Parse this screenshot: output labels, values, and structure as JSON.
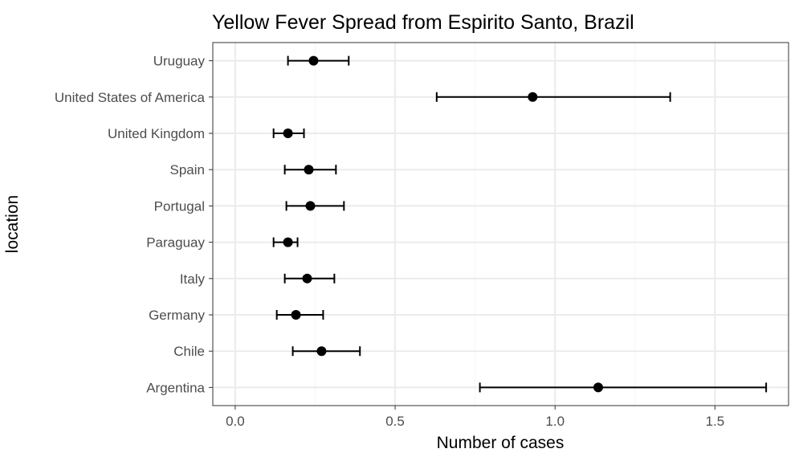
{
  "chart_data": {
    "type": "scatter",
    "title": "Yellow Fever Spread from Espirito Santo, Brazil",
    "xlabel": "Number of cases",
    "ylabel": "location",
    "xlim": [
      -0.07,
      1.73
    ],
    "x_ticks": [
      0.0,
      0.5,
      1.0,
      1.5
    ],
    "x_tick_labels": [
      "0.0",
      "0.5",
      "1.0",
      "1.5"
    ],
    "grid": true,
    "categories": [
      "Uruguay",
      "United States of America",
      "United Kingdom",
      "Spain",
      "Portugal",
      "Paraguay",
      "Italy",
      "Germany",
      "Chile",
      "Argentina"
    ],
    "points": [
      {
        "location": "Uruguay",
        "value": 0.245,
        "lower": 0.165,
        "upper": 0.355
      },
      {
        "location": "United States of America",
        "value": 0.93,
        "lower": 0.63,
        "upper": 1.36
      },
      {
        "location": "United Kingdom",
        "value": 0.165,
        "lower": 0.12,
        "upper": 0.215
      },
      {
        "location": "Spain",
        "value": 0.23,
        "lower": 0.155,
        "upper": 0.315
      },
      {
        "location": "Portugal",
        "value": 0.235,
        "lower": 0.16,
        "upper": 0.34
      },
      {
        "location": "Paraguay",
        "value": 0.165,
        "lower": 0.12,
        "upper": 0.195
      },
      {
        "location": "Italy",
        "value": 0.225,
        "lower": 0.155,
        "upper": 0.31
      },
      {
        "location": "Germany",
        "value": 0.19,
        "lower": 0.13,
        "upper": 0.275
      },
      {
        "location": "Chile",
        "value": 0.27,
        "lower": 0.18,
        "upper": 0.39
      },
      {
        "location": "Argentina",
        "value": 1.135,
        "lower": 0.765,
        "upper": 1.66
      }
    ],
    "colors": {
      "point": "#000000",
      "errorbar": "#000000",
      "grid_major": "#ebebeb",
      "grid_minor": "#f5f5f5",
      "panel_border": "#333333"
    }
  }
}
